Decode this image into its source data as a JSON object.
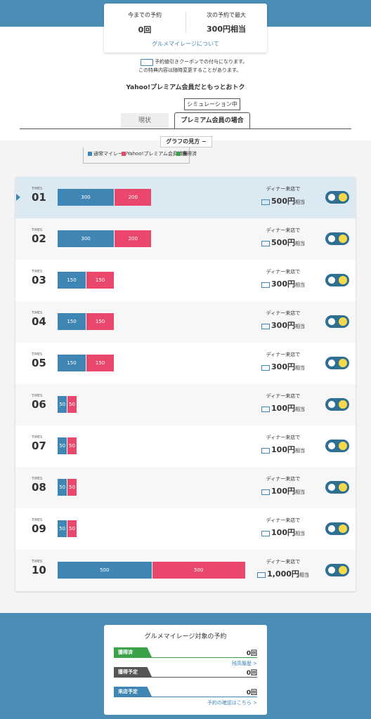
{
  "header": {
    "past_label": "今までの予約",
    "past_value": "0回",
    "next_label": "次の予約で最大",
    "next_value": "300円相当",
    "link": "グルメマイレージについて"
  },
  "notes": [
    "予約値引きクーポンでの付与になります。",
    "この特典内容は随時変更することがあります。"
  ],
  "promo": "Yahoo!プレミアム会員だともっとおトク",
  "badge": "シミュレーション中",
  "tabs": [
    "現状",
    "プレミアム会員の場合"
  ],
  "graph_toggle": "グラフの見方",
  "legend": [
    {
      "name": "通常マイレージ",
      "color": "#3f86b4"
    },
    {
      "name": "Yahoo!プレミアム会員特典",
      "color": "#e9476c"
    },
    {
      "name": "獲得済",
      "color": "#3aa34a"
    }
  ],
  "rows": [
    {
      "times": "TIMES",
      "number": "01",
      "regular": 300,
      "premium": 200,
      "condition": "ディナー来店で",
      "reward": "500円",
      "reward_suffix": "相当"
    },
    {
      "times": "TIMES",
      "number": "02",
      "regular": 300,
      "premium": 200,
      "condition": "ディナー来店で",
      "reward": "500円",
      "reward_suffix": "相当"
    },
    {
      "times": "TIMES",
      "number": "03",
      "regular": 150,
      "premium": 150,
      "condition": "ディナー来店で",
      "reward": "300円",
      "reward_suffix": "相当"
    },
    {
      "times": "TIMES",
      "number": "04",
      "regular": 150,
      "premium": 150,
      "condition": "ディナー来店で",
      "reward": "300円",
      "reward_suffix": "相当"
    },
    {
      "times": "TIMES",
      "number": "05",
      "regular": 150,
      "premium": 150,
      "condition": "ディナー来店で",
      "reward": "300円",
      "reward_suffix": "相当"
    },
    {
      "times": "TIMES",
      "number": "06",
      "regular": 50,
      "premium": 50,
      "condition": "ディナー来店で",
      "reward": "100円",
      "reward_suffix": "相当"
    },
    {
      "times": "TIMES",
      "number": "07",
      "regular": 50,
      "premium": 50,
      "condition": "ディナー来店で",
      "reward": "100円",
      "reward_suffix": "相当"
    },
    {
      "times": "TIMES",
      "number": "08",
      "regular": 50,
      "premium": 50,
      "condition": "ディナー来店で",
      "reward": "100円",
      "reward_suffix": "相当"
    },
    {
      "times": "TIMES",
      "number": "09",
      "regular": 50,
      "premium": 50,
      "condition": "ディナー来店で",
      "reward": "100円",
      "reward_suffix": "相当"
    },
    {
      "times": "TIMES",
      "number": "10",
      "regular": 500,
      "premium": 500,
      "condition": "ディナー来店で",
      "reward": "1,000円",
      "reward_suffix": "相当"
    }
  ],
  "summary": {
    "title": "グルメマイレージ対象の予約",
    "items": [
      {
        "label": "獲得済",
        "value": "0回",
        "color": "#3aa34a",
        "link": "残高履歴 >"
      },
      {
        "label": "獲得予定",
        "value": "0回",
        "color": "#555555"
      },
      {
        "label": "来店予定",
        "value": "0回",
        "color": "#3f86b4",
        "link": "予約の確認はこちら >"
      }
    ]
  }
}
